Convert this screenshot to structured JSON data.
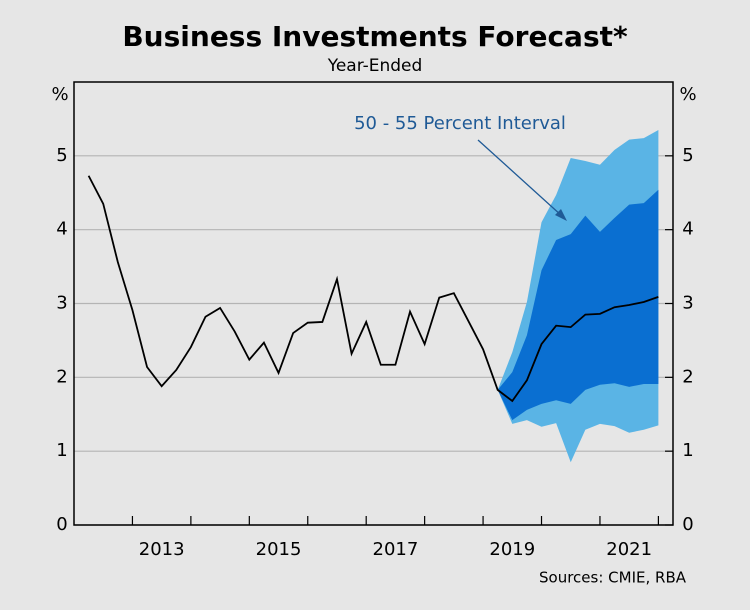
{
  "chart_data": {
    "type": "line",
    "title": "Business Investments Forecast*",
    "subtitle": "Year-Ended",
    "y_unit_left": "%",
    "y_unit_right": "%",
    "source": "Sources: CMIE, RBA",
    "annotation": {
      "text": "50 - 55 Percent Interval",
      "color": "#1f5a96"
    },
    "x": [
      2012.25,
      2012.5,
      2012.75,
      2013,
      2013.25,
      2013.5,
      2013.75,
      2014,
      2014.25,
      2014.5,
      2014.75,
      2015,
      2015.25,
      2015.5,
      2015.75,
      2016,
      2016.25,
      2016.5,
      2016.75,
      2017,
      2017.25,
      2017.5,
      2017.75,
      2018,
      2018.25,
      2018.5,
      2018.75,
      2019,
      2019.25,
      2019.5,
      2019.75,
      2020,
      2020.25,
      2020.5,
      2020.75,
      2021,
      2021.25,
      2021.5,
      2021.75,
      2022
    ],
    "series": [
      {
        "color": "#000000",
        "values": [
          4.73,
          4.35,
          3.56,
          2.91,
          2.14,
          1.88,
          2.1,
          2.41,
          2.82,
          2.94,
          2.62,
          2.24,
          2.47,
          2.06,
          2.6,
          2.74,
          2.75,
          3.33,
          2.32,
          2.75,
          2.17,
          2.17,
          2.89,
          2.45,
          3.08,
          3.14,
          2.76,
          2.38,
          1.83,
          1.68,
          1.96,
          2.45,
          2.7,
          2.68,
          2.85,
          2.86,
          2.95,
          2.98,
          3.02,
          3.09
        ]
      }
    ],
    "bands": [
      {
        "color": "#5ab4e5",
        "upper": [
          null,
          null,
          null,
          null,
          null,
          null,
          null,
          null,
          null,
          null,
          null,
          null,
          null,
          null,
          null,
          null,
          null,
          null,
          null,
          null,
          null,
          null,
          null,
          null,
          null,
          null,
          null,
          null,
          1.83,
          2.34,
          3.02,
          4.1,
          4.47,
          4.97,
          4.93,
          4.88,
          5.08,
          5.22,
          5.24,
          5.35
        ],
        "lower": [
          null,
          null,
          null,
          null,
          null,
          null,
          null,
          null,
          null,
          null,
          null,
          null,
          null,
          null,
          null,
          null,
          null,
          null,
          null,
          null,
          null,
          null,
          null,
          null,
          null,
          null,
          null,
          null,
          1.83,
          1.37,
          1.42,
          1.33,
          1.38,
          0.85,
          1.29,
          1.37,
          1.34,
          1.25,
          1.29,
          1.35
        ]
      },
      {
        "color": "#0a6fd1",
        "upper": [
          null,
          null,
          null,
          null,
          null,
          null,
          null,
          null,
          null,
          null,
          null,
          null,
          null,
          null,
          null,
          null,
          null,
          null,
          null,
          null,
          null,
          null,
          null,
          null,
          null,
          null,
          null,
          null,
          1.83,
          2.07,
          2.57,
          3.45,
          3.86,
          3.94,
          4.19,
          3.97,
          4.16,
          4.34,
          4.36,
          4.54
        ],
        "lower": [
          null,
          null,
          null,
          null,
          null,
          null,
          null,
          null,
          null,
          null,
          null,
          null,
          null,
          null,
          null,
          null,
          null,
          null,
          null,
          null,
          null,
          null,
          null,
          null,
          null,
          null,
          null,
          null,
          1.83,
          1.42,
          1.56,
          1.64,
          1.69,
          1.64,
          1.83,
          1.9,
          1.92,
          1.87,
          1.91,
          1.91
        ]
      }
    ],
    "xlim": [
      2012,
      2022.25
    ],
    "xticks": [
      2013,
      2014,
      2015,
      2016,
      2017,
      2018,
      2019,
      2020,
      2021,
      2022
    ],
    "xtick_labels": [
      {
        "value": 2013.5,
        "label": "2013"
      },
      {
        "value": 2015.5,
        "label": "2015"
      },
      {
        "value": 2017.5,
        "label": "2017"
      },
      {
        "value": 2019.5,
        "label": "2019"
      },
      {
        "value": 2021.5,
        "label": "2021"
      }
    ],
    "ylim": [
      0,
      6
    ],
    "yticks": [
      0,
      1,
      2,
      3,
      4,
      5
    ],
    "grid": true
  }
}
